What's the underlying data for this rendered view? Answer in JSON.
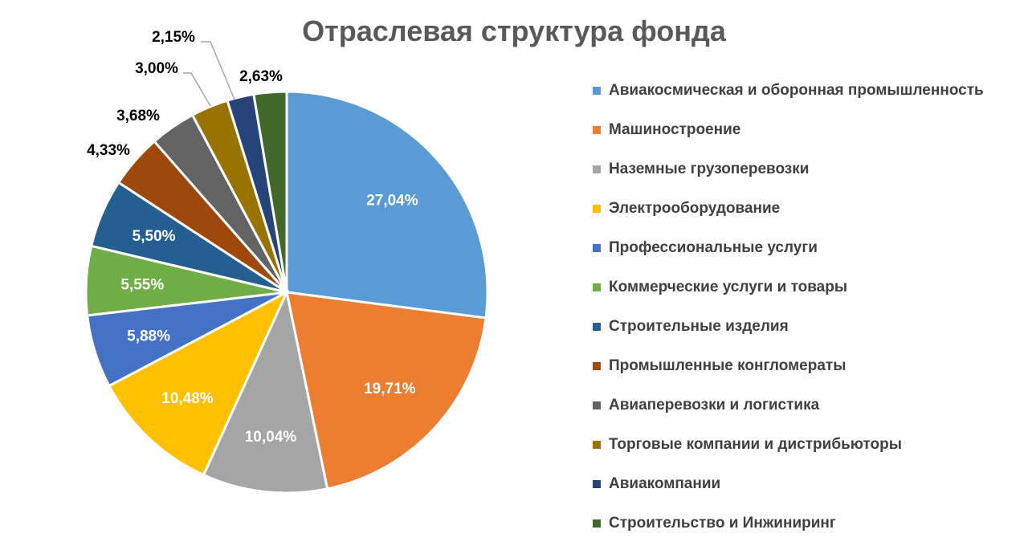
{
  "chart_data": {
    "type": "pie",
    "title": "Отраслевая структура фонда",
    "start_angle": "top",
    "direction": "clockwise",
    "legend_position": "right",
    "slices": [
      {
        "label": "Авиакосмическая и оборонная промышленность",
        "value": 27.04,
        "text": "27,04%",
        "color": "#5b9bd5"
      },
      {
        "label": "Машиностроение",
        "value": 19.71,
        "text": "19,71%",
        "color": "#ed7d31"
      },
      {
        "label": "Наземные грузоперевозки",
        "value": 10.04,
        "text": "10,04%",
        "color": "#a5a5a5"
      },
      {
        "label": "Электрооборудование",
        "value": 10.48,
        "text": "10,48%",
        "color": "#ffc000"
      },
      {
        "label": "Профессиональные услуги",
        "value": 5.88,
        "text": "5,88%",
        "color": "#4472c4"
      },
      {
        "label": "Коммерческие услуги и товары",
        "value": 5.55,
        "text": "5,55%",
        "color": "#70ad47"
      },
      {
        "label": "Строительные изделия",
        "value": 5.5,
        "text": "5,50%",
        "color": "#255e91"
      },
      {
        "label": "Промышленные конгломераты",
        "value": 4.33,
        "text": "4,33%",
        "color": "#9e480e"
      },
      {
        "label": "Авиаперевозки и логистика",
        "value": 3.68,
        "text": "3,68%",
        "color": "#636363"
      },
      {
        "label": "Торговые компании и дистрибьюторы",
        "value": 3.0,
        "text": "3,00%",
        "color": "#997300"
      },
      {
        "label": "Авиакомпании",
        "value": 2.15,
        "text": "2,15%",
        "color": "#264478"
      },
      {
        "label": "Строительство и Инжиниринг",
        "value": 2.63,
        "text": "2,63%",
        "color": "#43682b"
      }
    ]
  }
}
